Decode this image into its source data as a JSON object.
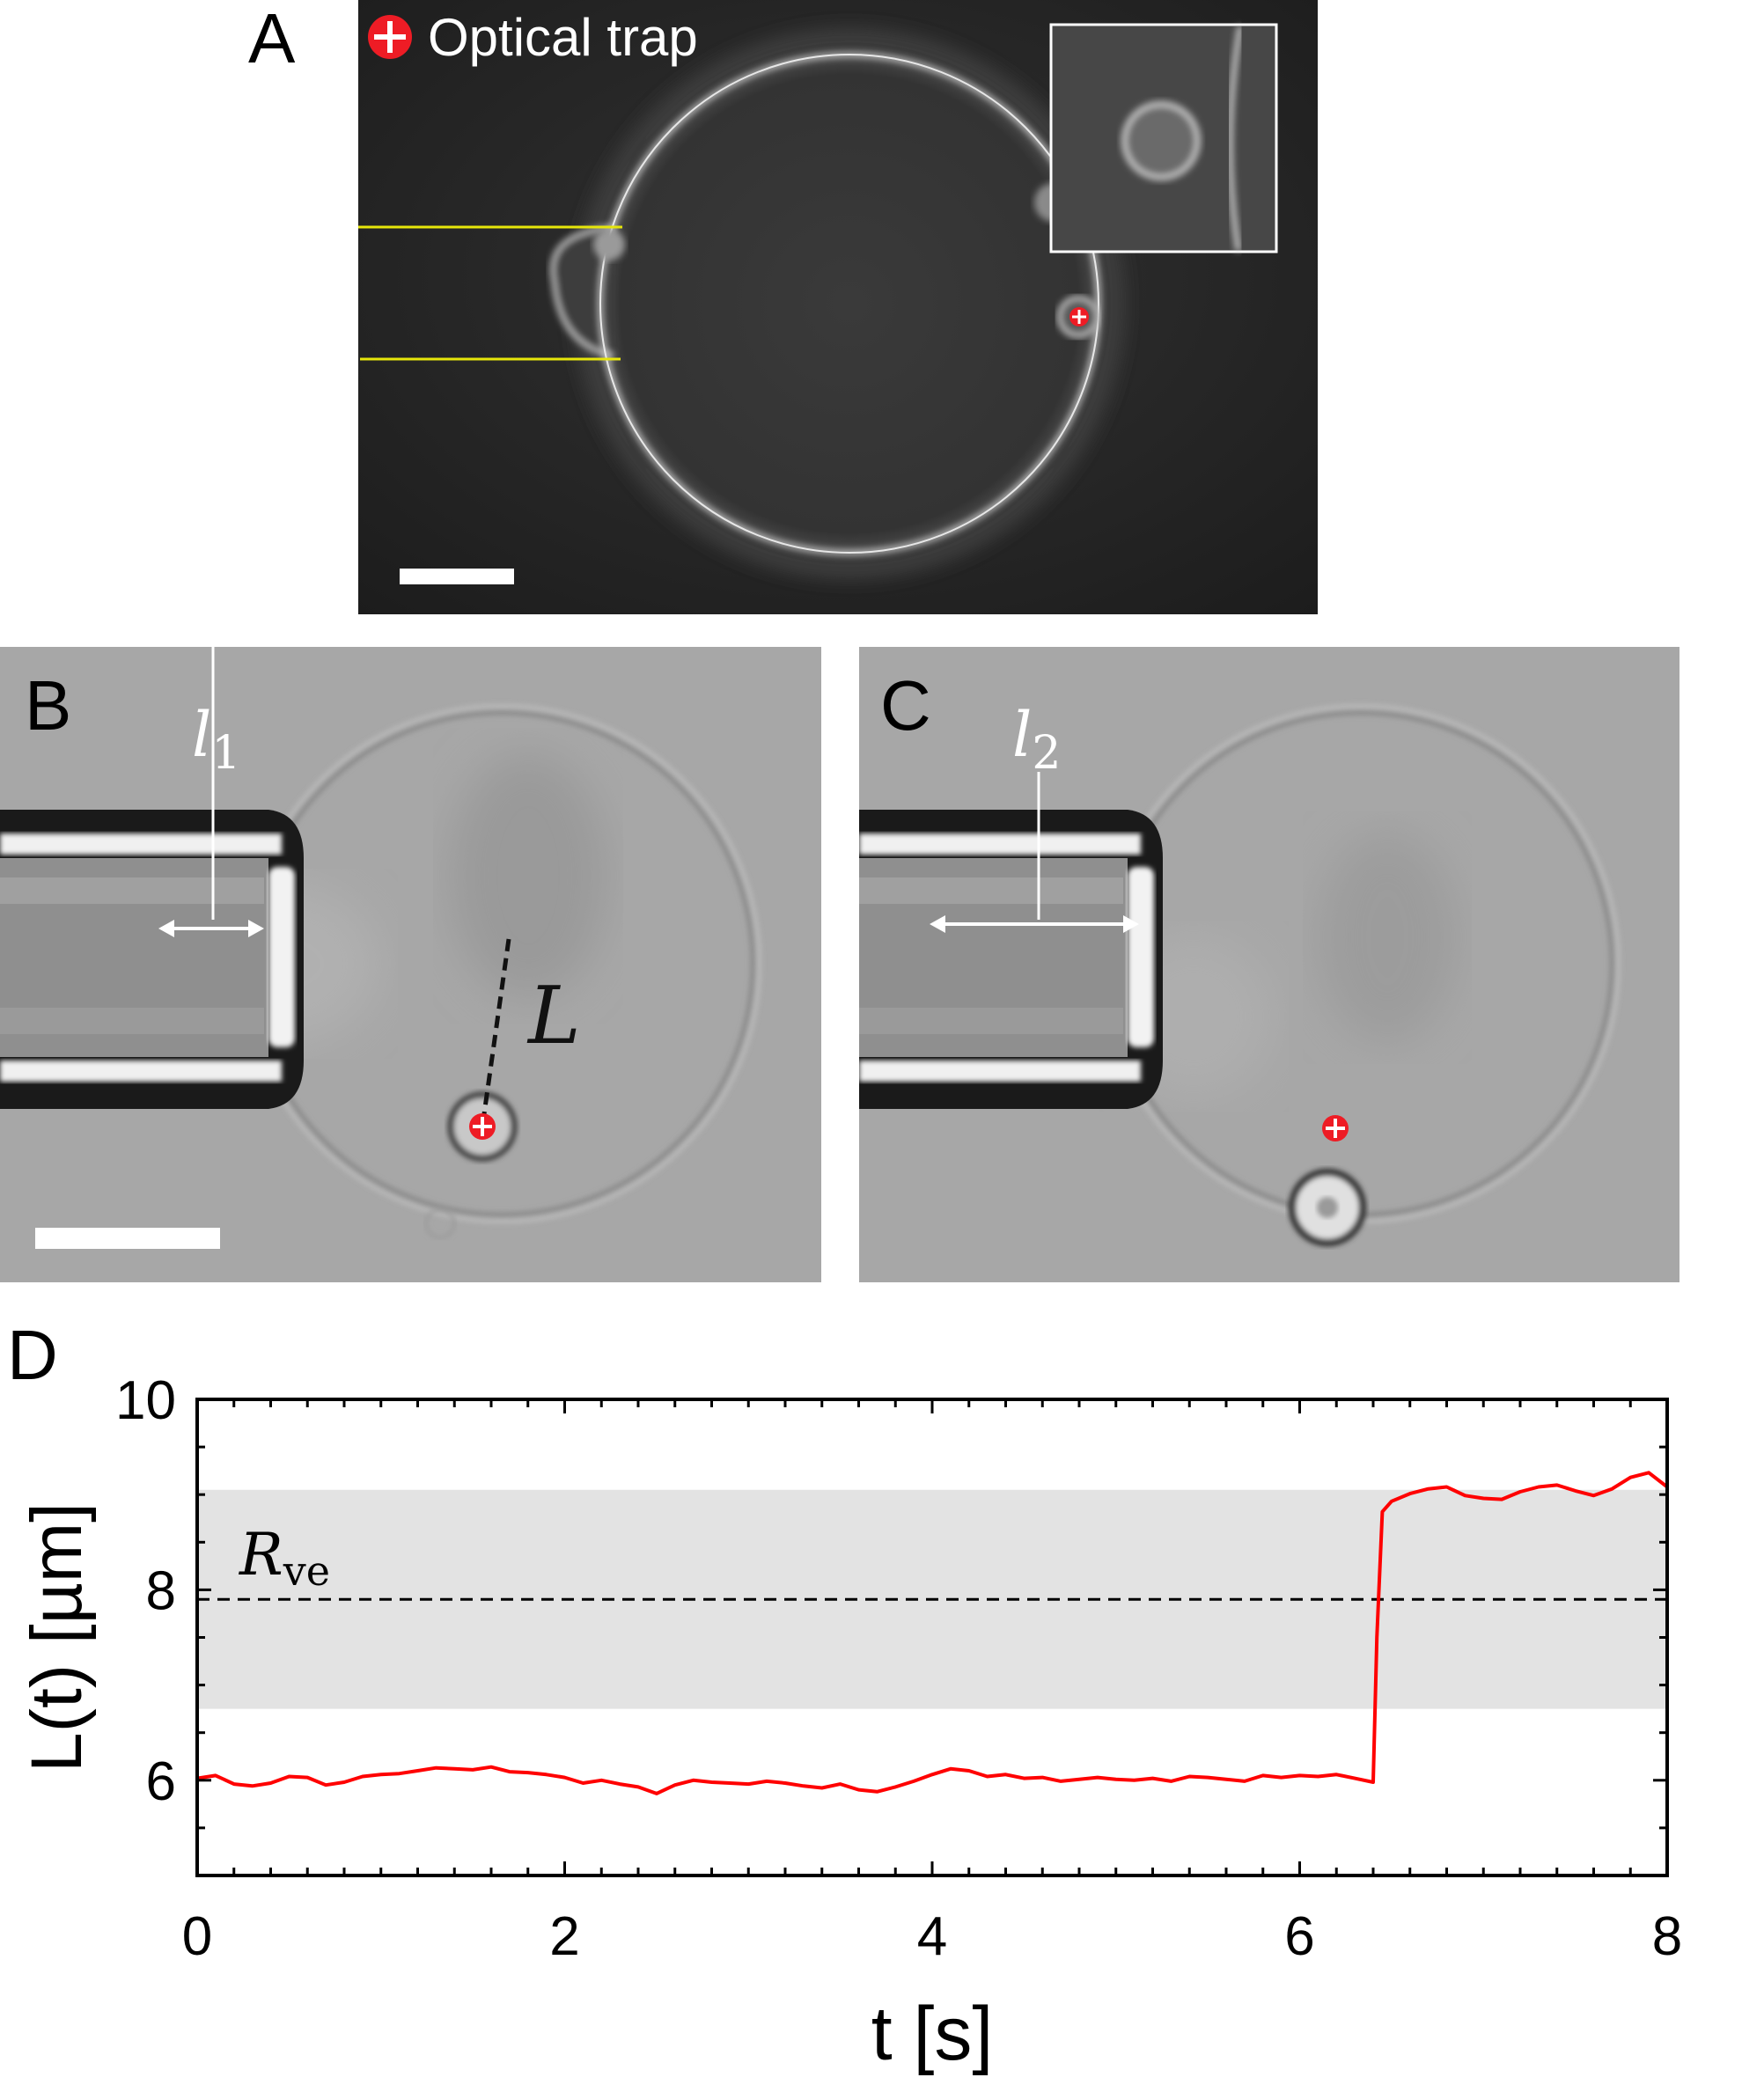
{
  "panels": {
    "a": {
      "letter": "A",
      "legend": "Optical trap"
    },
    "b": {
      "letter": "B",
      "length_label_base": "l",
      "length_label_sub": "1",
      "distance_label": "L"
    },
    "c": {
      "letter": "C",
      "length_label_base": "l",
      "length_label_sub": "2"
    },
    "d": {
      "letter": "D"
    }
  },
  "chart_data": {
    "type": "line",
    "xlabel": "t [s]",
    "ylabel": "L(t) [µm]",
    "xlim": [
      0,
      8
    ],
    "ylim": [
      5,
      10
    ],
    "xticks": [
      0,
      2,
      4,
      6,
      8
    ],
    "yticks": [
      6,
      8,
      10
    ],
    "grid": false,
    "reference_line": {
      "label_base": "R",
      "label_sub": "ve",
      "value": 7.9,
      "style": "dashed"
    },
    "shaded_band": {
      "from": 6.75,
      "to": 9.05,
      "color": "#e3e3e3"
    },
    "series": [
      {
        "color": "#ff0000",
        "x": [
          0,
          0.1,
          0.2,
          0.3,
          0.4,
          0.5,
          0.6,
          0.7,
          0.8,
          0.9,
          1.0,
          1.1,
          1.2,
          1.3,
          1.4,
          1.5,
          1.6,
          1.7,
          1.8,
          1.9,
          2.0,
          2.1,
          2.2,
          2.3,
          2.4,
          2.5,
          2.6,
          2.7,
          2.8,
          2.9,
          3.0,
          3.1,
          3.2,
          3.3,
          3.4,
          3.5,
          3.6,
          3.7,
          3.8,
          3.9,
          4.0,
          4.1,
          4.2,
          4.3,
          4.4,
          4.5,
          4.6,
          4.7,
          4.8,
          4.9,
          5.0,
          5.1,
          5.2,
          5.3,
          5.4,
          5.5,
          5.6,
          5.7,
          5.8,
          5.9,
          6.0,
          6.1,
          6.2,
          6.3,
          6.4,
          6.42,
          6.45,
          6.5,
          6.6,
          6.7,
          6.8,
          6.9,
          7.0,
          7.1,
          7.2,
          7.3,
          7.4,
          7.5,
          7.6,
          7.7,
          7.8,
          7.9,
          8.0
        ],
        "y": [
          6.02,
          6.05,
          5.96,
          5.94,
          5.97,
          6.04,
          6.03,
          5.95,
          5.98,
          6.04,
          6.06,
          6.07,
          6.1,
          6.13,
          6.12,
          6.11,
          6.14,
          6.09,
          6.08,
          6.06,
          6.03,
          5.97,
          6.0,
          5.96,
          5.93,
          5.86,
          5.95,
          6.0,
          5.98,
          5.97,
          5.96,
          5.99,
          5.97,
          5.94,
          5.92,
          5.96,
          5.9,
          5.88,
          5.93,
          5.99,
          6.06,
          6.12,
          6.1,
          6.04,
          6.06,
          6.02,
          6.03,
          5.99,
          6.01,
          6.03,
          6.01,
          6.0,
          6.02,
          5.99,
          6.04,
          6.03,
          6.01,
          5.99,
          6.05,
          6.03,
          6.05,
          6.04,
          6.06,
          6.02,
          5.98,
          7.5,
          8.82,
          8.93,
          9.01,
          9.06,
          9.08,
          8.99,
          8.96,
          8.95,
          9.03,
          9.08,
          9.1,
          9.04,
          8.99,
          9.06,
          9.18,
          9.23,
          9.08
        ]
      }
    ]
  }
}
